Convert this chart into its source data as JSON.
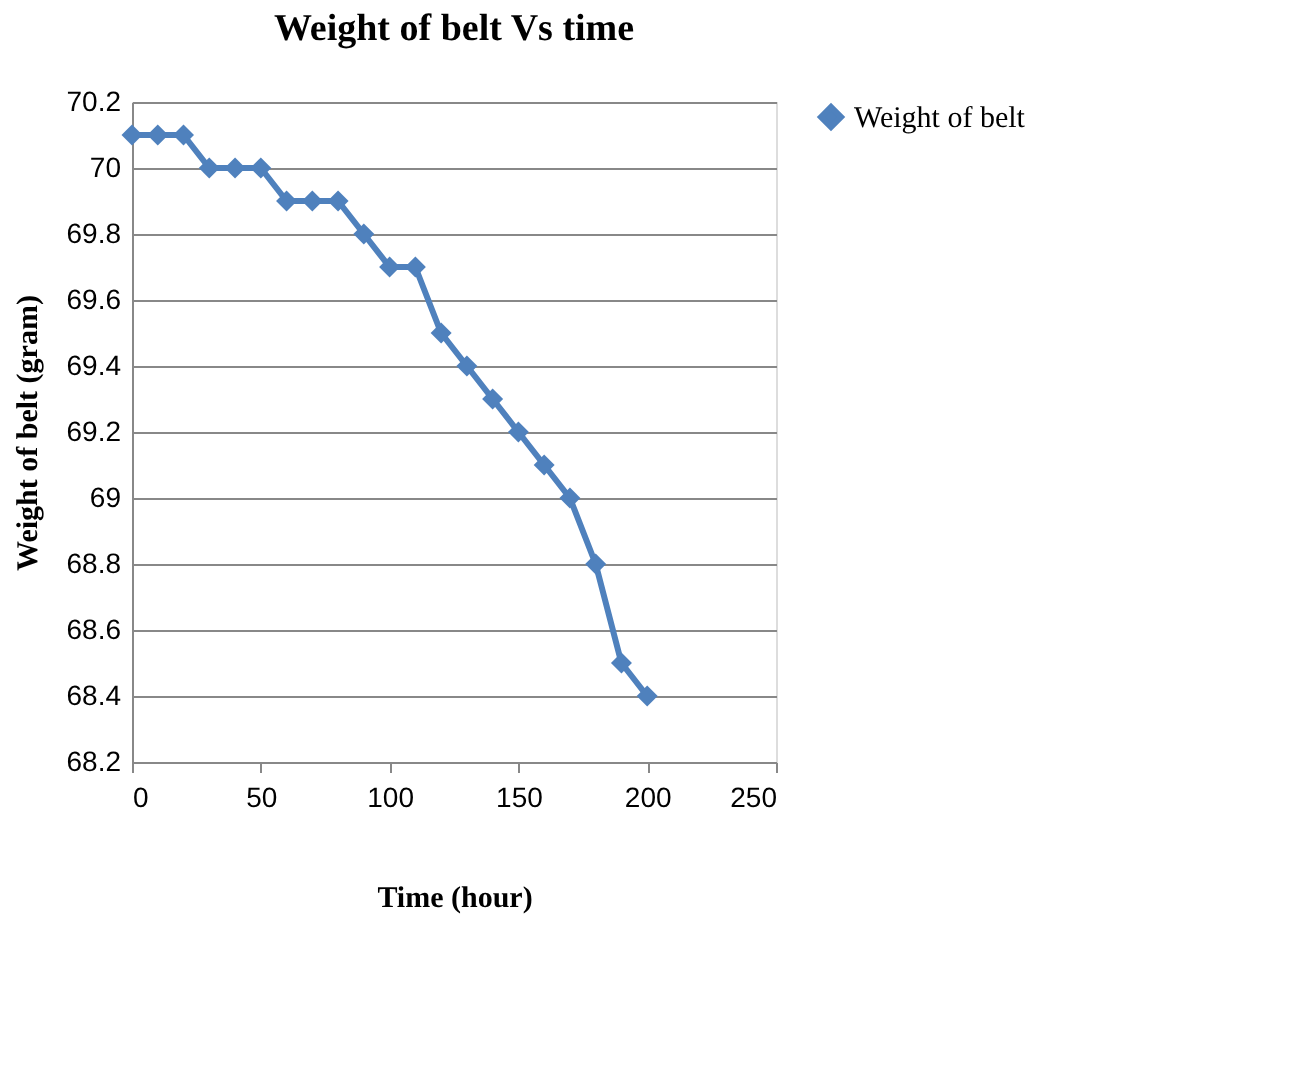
{
  "chart_data": {
    "type": "line",
    "title": "Weight of belt Vs time",
    "xlabel": "Time (hour)",
    "ylabel": "Weight of belt (gram)",
    "x": [
      0,
      10,
      20,
      30,
      40,
      50,
      60,
      70,
      80,
      90,
      100,
      110,
      120,
      130,
      140,
      150,
      160,
      170,
      180,
      190,
      200
    ],
    "series": [
      {
        "name": "Weight of belt",
        "color": "#4f81bd",
        "values": [
          70.1,
          70.1,
          70.1,
          70.0,
          70.0,
          70.0,
          69.9,
          69.9,
          69.9,
          69.8,
          69.7,
          69.7,
          69.5,
          69.4,
          69.3,
          69.2,
          69.1,
          69.0,
          68.8,
          68.5,
          68.4
        ]
      }
    ],
    "xlim": [
      0,
      250
    ],
    "xticks": [
      0,
      50,
      100,
      150,
      200,
      250
    ],
    "ylim": [
      68.2,
      70.2
    ],
    "yticks": [
      68.2,
      68.4,
      68.6,
      68.8,
      69,
      69.2,
      69.4,
      69.6,
      69.8,
      70,
      70.2
    ],
    "grid": "y",
    "legend": "right",
    "marker": "diamond",
    "line_style": "solid"
  }
}
